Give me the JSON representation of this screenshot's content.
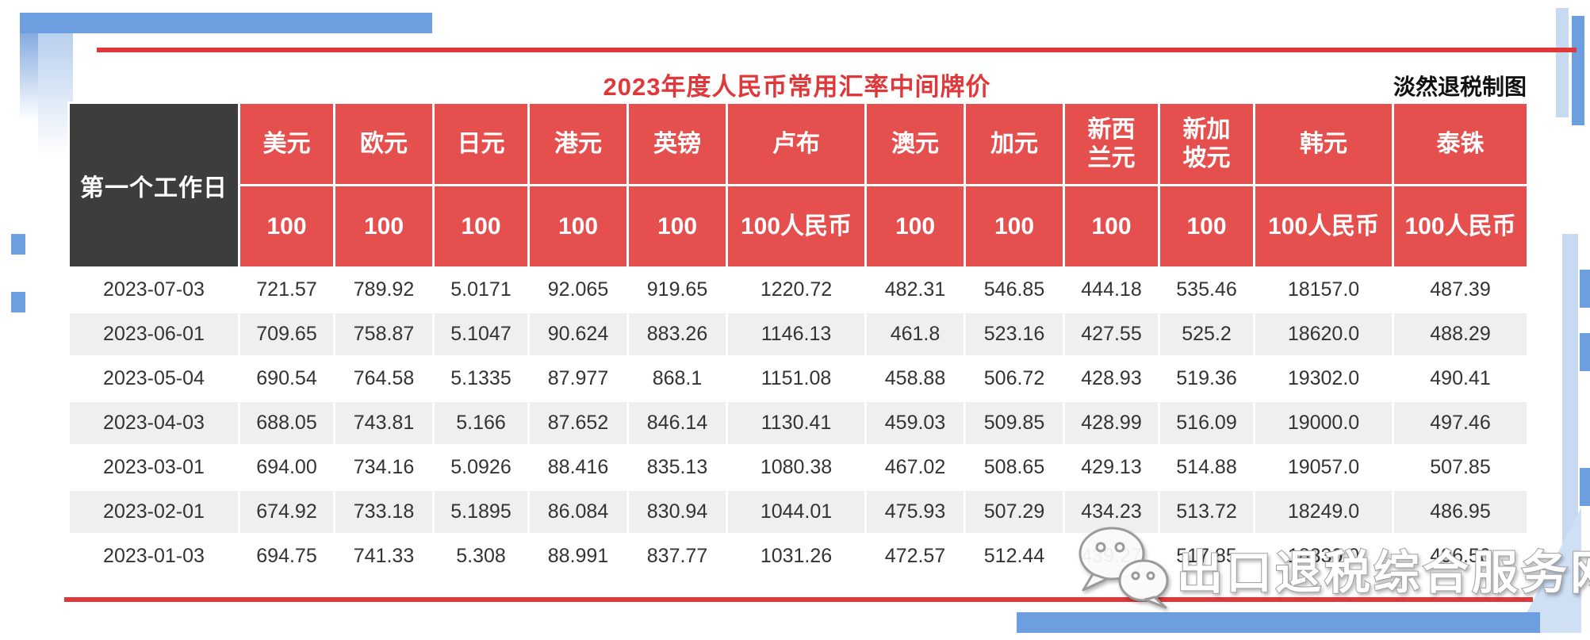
{
  "header": {
    "title": "2023年度人民币常用汇率中间牌价",
    "credit": "淡然退税制图"
  },
  "watermark": {
    "icon": "wechat-icon",
    "text": "出口退税综合服务网"
  },
  "colors": {
    "header_red": "#e5504f",
    "title_red": "#e0383a",
    "corner_dark": "#3d3d3d",
    "stripe_gray": "#efefef",
    "ribbon_blue": "#6d9ee0",
    "ribbon_light_blue": "#c7daf2"
  },
  "chart_data": {
    "type": "table",
    "title": "2023年度人民币常用汇率中间牌价",
    "corner_header": "第一个工作日",
    "columns": [
      {
        "label": "美元",
        "unit": "100"
      },
      {
        "label": "欧元",
        "unit": "100"
      },
      {
        "label": "日元",
        "unit": "100"
      },
      {
        "label": "港元",
        "unit": "100"
      },
      {
        "label": "英镑",
        "unit": "100"
      },
      {
        "label": "卢布",
        "unit": "100人民币"
      },
      {
        "label": "澳元",
        "unit": "100"
      },
      {
        "label": "加元",
        "unit": "100"
      },
      {
        "label": "新西\n兰元",
        "unit": "100"
      },
      {
        "label": "新加\n坡元",
        "unit": "100"
      },
      {
        "label": "韩元",
        "unit": "100人民币"
      },
      {
        "label": "泰铢",
        "unit": "100人民币"
      }
    ],
    "row_dates": [
      "2023-07-03",
      "2023-06-01",
      "2023-05-04",
      "2023-04-03",
      "2023-03-01",
      "2023-02-01",
      "2023-01-03"
    ],
    "rows": [
      [
        "721.57",
        "789.92",
        "5.0171",
        "92.065",
        "919.65",
        "1220.72",
        "482.31",
        "546.85",
        "444.18",
        "535.46",
        "18157.0",
        "487.39"
      ],
      [
        "709.65",
        "758.87",
        "5.1047",
        "90.624",
        "883.26",
        "1146.13",
        "461.8",
        "523.16",
        "427.55",
        "525.2",
        "18620.0",
        "488.29"
      ],
      [
        "690.54",
        "764.58",
        "5.1335",
        "87.977",
        "868.1",
        "1151.08",
        "458.88",
        "506.72",
        "428.93",
        "519.36",
        "19302.0",
        "490.41"
      ],
      [
        "688.05",
        "743.81",
        "5.166",
        "87.652",
        "846.14",
        "1130.41",
        "459.03",
        "509.85",
        "428.99",
        "516.09",
        "19000.0",
        "497.46"
      ],
      [
        "694.00",
        "734.16",
        "5.0926",
        "88.416",
        "835.13",
        "1080.38",
        "467.02",
        "508.65",
        "429.13",
        "514.88",
        "19057.0",
        "507.85"
      ],
      [
        "674.92",
        "733.18",
        "5.1895",
        "86.084",
        "830.94",
        "1044.01",
        "475.93",
        "507.29",
        "434.23",
        "513.72",
        "18249.0",
        "486.95"
      ],
      [
        "694.75",
        "741.33",
        "5.308",
        "88.991",
        "837.77",
        "1031.26",
        "472.57",
        "512.44",
        "439.27",
        "517.85",
        "18330.0",
        "496.50"
      ]
    ]
  }
}
